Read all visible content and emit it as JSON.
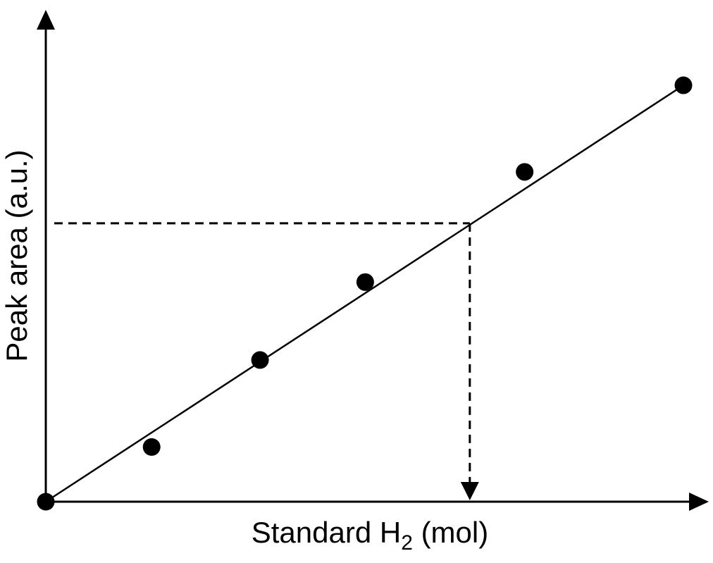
{
  "chart_data": {
    "type": "scatter",
    "title": "",
    "xlabel_main": "Standard H",
    "xlabel_sub": "2",
    "xlabel_tail": " (mol)",
    "ylabel": "Peak area (a.u.)",
    "xlim": [
      0,
      1
    ],
    "ylim": [
      0,
      1
    ],
    "grid": false,
    "legend": "none",
    "points": [
      {
        "x": 0.0,
        "y": 0.0
      },
      {
        "x": 0.166,
        "y": 0.132
      },
      {
        "x": 0.336,
        "y": 0.342
      },
      {
        "x": 0.501,
        "y": 0.53
      },
      {
        "x": 0.751,
        "y": 0.796
      },
      {
        "x": 1.0,
        "y": 1.005
      }
    ],
    "fit_line": {
      "x0": 0.0,
      "y0": 0.0,
      "x1": 1.0,
      "y1": 1.005
    },
    "readout": {
      "x": 0.665,
      "y": 0.672
    }
  }
}
